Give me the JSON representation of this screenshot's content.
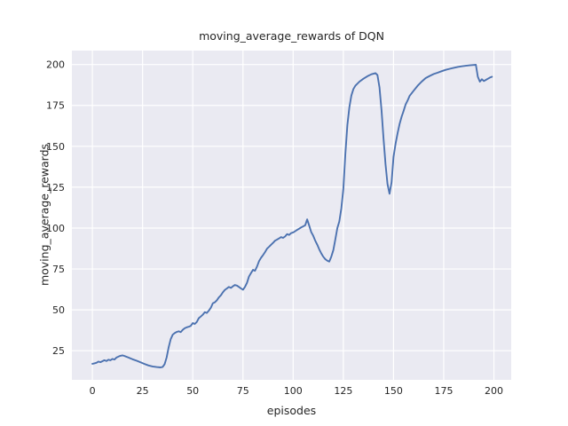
{
  "figure": {
    "background": "#ffffff",
    "axes_background": "#eaeaf2",
    "grid_color": "#ffffff",
    "text_color": "#262626"
  },
  "chart_data": {
    "type": "line",
    "title": "moving_average_rewards of DQN",
    "xlabel": "episodes",
    "ylabel": "moving_average_rewards",
    "grid": true,
    "legend_position": "none",
    "xlim": [
      -10.2,
      208.6
    ],
    "ylim": [
      7.2,
      208.5
    ],
    "x_ticks": [
      0,
      25,
      50,
      75,
      100,
      125,
      150,
      175,
      200
    ],
    "y_ticks": [
      25,
      50,
      75,
      100,
      125,
      150,
      175,
      200
    ],
    "series": [
      {
        "name": "moving_average_rewards",
        "color": "#4c72b0",
        "x": [
          0,
          1,
          2,
          3,
          4,
          5,
          6,
          7,
          8,
          9,
          10,
          11,
          12,
          13,
          14,
          15,
          16,
          17,
          18,
          19,
          20,
          22,
          24,
          26,
          28,
          30,
          32,
          34,
          35,
          36,
          37,
          38,
          39,
          40,
          41,
          42,
          43,
          44,
          45,
          46,
          47,
          48,
          49,
          50,
          51,
          52,
          53,
          54,
          55,
          56,
          57,
          58,
          59,
          60,
          61,
          62,
          63,
          64,
          65,
          66,
          67,
          68,
          69,
          70,
          71,
          72,
          73,
          74,
          75,
          76,
          77,
          78,
          79,
          80,
          81,
          82,
          83,
          84,
          85,
          86,
          87,
          88,
          89,
          90,
          91,
          92,
          93,
          94,
          95,
          96,
          97,
          98,
          99,
          100,
          101,
          102,
          103,
          104,
          105,
          106,
          107,
          108,
          109,
          110,
          111,
          112,
          113,
          114,
          115,
          116,
          117,
          118,
          119,
          120,
          121,
          122,
          123,
          124,
          125,
          126,
          127,
          128,
          129,
          130,
          131,
          133,
          135,
          137,
          139,
          141,
          142,
          143,
          144,
          145,
          146,
          147,
          148,
          149,
          150,
          151,
          152,
          153,
          154,
          155,
          156,
          157,
          158,
          160,
          162,
          164,
          166,
          168,
          170,
          172,
          174,
          176,
          178,
          180,
          182,
          184,
          186,
          188,
          190,
          191,
          192,
          193,
          194,
          195,
          196,
          197,
          198,
          199
        ],
        "y": [
          17,
          17.3,
          17.6,
          18.4,
          18,
          18.6,
          19.2,
          18.7,
          19.5,
          19.2,
          20,
          19.6,
          20.8,
          21.4,
          21.9,
          22.2,
          21.8,
          21.3,
          20.8,
          20.3,
          19.8,
          18.9,
          17.9,
          16.9,
          16,
          15.4,
          15,
          14.8,
          15.1,
          16.8,
          21,
          27,
          32,
          34.8,
          35.8,
          36.5,
          36.9,
          36.4,
          37.8,
          38.7,
          39.3,
          39.7,
          40.2,
          41.9,
          41.4,
          42.6,
          44.9,
          45.9,
          47,
          48.6,
          48.1,
          49.5,
          51.3,
          54,
          54.6,
          55.8,
          57.6,
          58.9,
          60.7,
          62.2,
          63.1,
          64,
          63.4,
          64.4,
          65.2,
          64.8,
          64,
          63.1,
          62.3,
          64,
          66.5,
          70.3,
          72.5,
          74.5,
          73.9,
          76.5,
          79.8,
          81.8,
          83.5,
          85.3,
          87.4,
          88.6,
          89.8,
          91,
          92.3,
          93,
          93.7,
          94.5,
          94,
          94.9,
          96.3,
          95.8,
          96.9,
          97.3,
          98.1,
          98.9,
          99.6,
          100.4,
          101,
          101.7,
          105.3,
          101.5,
          97.5,
          95.3,
          92.3,
          89.8,
          87,
          84.5,
          82.5,
          81,
          80,
          79.5,
          82.5,
          86.5,
          93,
          100,
          104,
          112,
          124,
          145,
          163,
          174,
          181,
          185,
          187,
          189.5,
          191.3,
          192.8,
          194,
          194.7,
          193.5,
          186,
          172,
          155,
          139,
          127,
          121,
          128,
          143.5,
          151.5,
          158,
          163.5,
          168,
          171.5,
          175.5,
          178,
          180.8,
          184,
          187,
          189.5,
          191.7,
          193,
          194.2,
          195,
          195.9,
          196.7,
          197.4,
          198,
          198.5,
          198.9,
          199.2,
          199.5,
          199.7,
          199.8,
          192.5,
          189.5,
          191,
          189.9,
          190.6,
          191.3,
          192,
          192.5
        ]
      }
    ]
  }
}
